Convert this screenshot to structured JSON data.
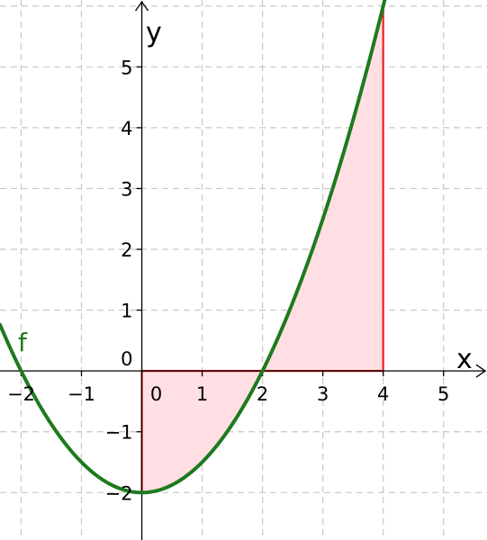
{
  "chart_data": {
    "type": "line",
    "xlabel": "x",
    "ylabel": "y",
    "xlim": [
      -2.35,
      5.72
    ],
    "ylim": [
      -2.78,
      6.1
    ],
    "grid": true,
    "x_ticks": [
      {
        "value": -2,
        "label": "−2"
      },
      {
        "value": -1,
        "label": "−1"
      },
      {
        "value": 0,
        "label": "0"
      },
      {
        "value": 1,
        "label": "1"
      },
      {
        "value": 2,
        "label": "2"
      },
      {
        "value": 3,
        "label": "3"
      },
      {
        "value": 4,
        "label": "4"
      },
      {
        "value": 5,
        "label": "5"
      }
    ],
    "y_ticks": [
      {
        "value": -2,
        "label": "−2"
      },
      {
        "value": -1,
        "label": "−1"
      },
      {
        "value": 0,
        "label": "0"
      },
      {
        "value": 1,
        "label": "1"
      },
      {
        "value": 2,
        "label": "2"
      },
      {
        "value": 3,
        "label": "3"
      },
      {
        "value": 4,
        "label": "4"
      },
      {
        "value": 5,
        "label": "5"
      }
    ],
    "series": [
      {
        "name": "f",
        "color": "#1e7a1e",
        "formula": "0.5*x^2 - 2",
        "x": [
          -2.35,
          -2,
          -1.5,
          -1,
          -0.5,
          0,
          0.5,
          1,
          1.5,
          2,
          2.5,
          3,
          3.5,
          4,
          4.1
        ],
        "y": [
          0.76,
          0,
          -0.875,
          -1.5,
          -1.875,
          -2,
          -1.875,
          -1.5,
          -0.875,
          0,
          1.125,
          2.5,
          4.125,
          6,
          6.405
        ]
      }
    ],
    "shaded_region": {
      "x_from": 0,
      "x_to": 4,
      "fill": "#ffdfe3",
      "border": "#ee2222"
    },
    "colors": {
      "grid": "#c8c8c8",
      "axes": "#000000",
      "curve": "#1e7a1e",
      "region_fill": "#ffdfe3",
      "region_border": "#ee2222"
    }
  }
}
